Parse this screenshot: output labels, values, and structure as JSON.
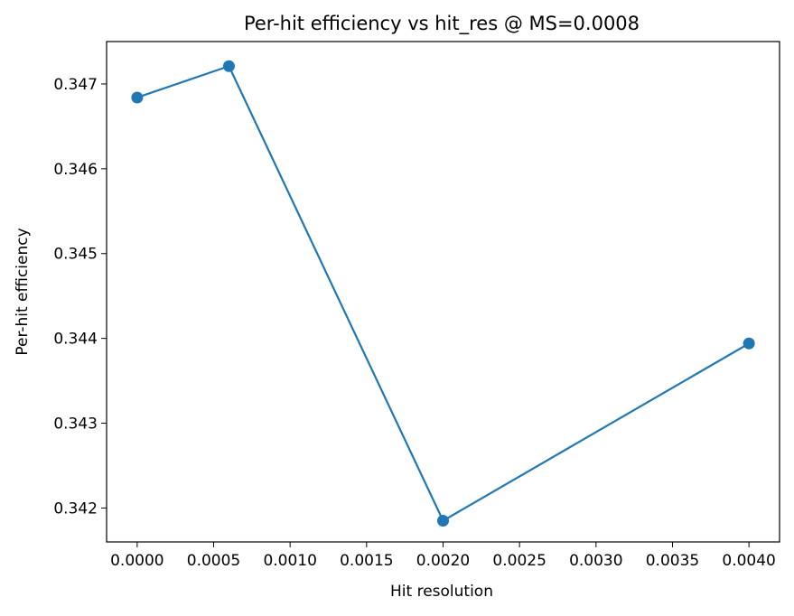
{
  "chart_data": {
    "type": "line",
    "title": "Per-hit efficiency vs hit_res @ MS=0.0008",
    "xlabel": "Hit resolution",
    "ylabel": "Per-hit efficiency",
    "xlim": [
      -0.0002,
      0.0042
    ],
    "ylim": [
      0.3416,
      0.3475
    ],
    "xticks": [
      0.0,
      0.0005,
      0.001,
      0.0015,
      0.002,
      0.0025,
      0.003,
      0.0035,
      0.004
    ],
    "xtick_labels": [
      "0.0000",
      "0.0005",
      "0.0010",
      "0.0015",
      "0.0020",
      "0.0025",
      "0.0030",
      "0.0035",
      "0.0040"
    ],
    "yticks": [
      0.342,
      0.343,
      0.344,
      0.345,
      0.346,
      0.347
    ],
    "ytick_labels": [
      "0.342",
      "0.343",
      "0.344",
      "0.345",
      "0.346",
      "0.347"
    ],
    "grid": false,
    "series": [
      {
        "color": "#1f77b4",
        "marker": "circle",
        "points": [
          {
            "x": 0.0,
            "y": 0.34684
          },
          {
            "x": 0.0006,
            "y": 0.34721
          },
          {
            "x": 0.002,
            "y": 0.34185
          },
          {
            "x": 0.004,
            "y": 0.34394
          }
        ]
      }
    ]
  }
}
